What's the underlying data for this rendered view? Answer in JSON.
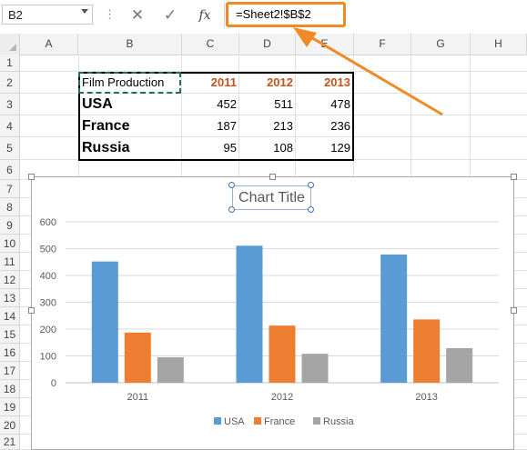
{
  "formula_bar": {
    "name_box": "B2",
    "dots": "⋮",
    "cancel_icon": "✕",
    "enter_icon": "✓",
    "fx_label": "fx",
    "formula": "=Sheet2!$B$2"
  },
  "columns": [
    "A",
    "B",
    "C",
    "D",
    "E",
    "F",
    "G",
    "H"
  ],
  "rows": [
    "1",
    "2",
    "3",
    "4",
    "5",
    "6",
    "7",
    "8",
    "9",
    "10",
    "11",
    "12",
    "13",
    "14",
    "15",
    "16",
    "17",
    "18",
    "19",
    "20",
    "21"
  ],
  "table": {
    "header": {
      "label": "Film Production",
      "years": [
        "2011",
        "2012",
        "2013"
      ]
    },
    "rows": [
      {
        "country": "USA",
        "values": [
          "452",
          "511",
          "478"
        ]
      },
      {
        "country": "France",
        "values": [
          "187",
          "213",
          "236"
        ]
      },
      {
        "country": "Russia",
        "values": [
          "95",
          "108",
          "129"
        ]
      }
    ]
  },
  "chart_data": {
    "type": "bar",
    "title": "Chart Title",
    "categories": [
      "2011",
      "2012",
      "2013"
    ],
    "series": [
      {
        "name": "USA",
        "values": [
          452,
          511,
          478
        ],
        "color": "#5b9bd5"
      },
      {
        "name": "France",
        "values": [
          187,
          213,
          236
        ],
        "color": "#ed7d31"
      },
      {
        "name": "Russia",
        "values": [
          95,
          108,
          129
        ],
        "color": "#a5a5a5"
      }
    ],
    "yticks": [
      "0",
      "100",
      "200",
      "300",
      "400",
      "500",
      "600"
    ],
    "ylim": [
      0,
      600
    ],
    "grid": true,
    "legend_position": "bottom"
  },
  "colors": {
    "accent_orange": "#f08a24",
    "year_header": "#c0541b",
    "copy_marquee": "#217346"
  }
}
